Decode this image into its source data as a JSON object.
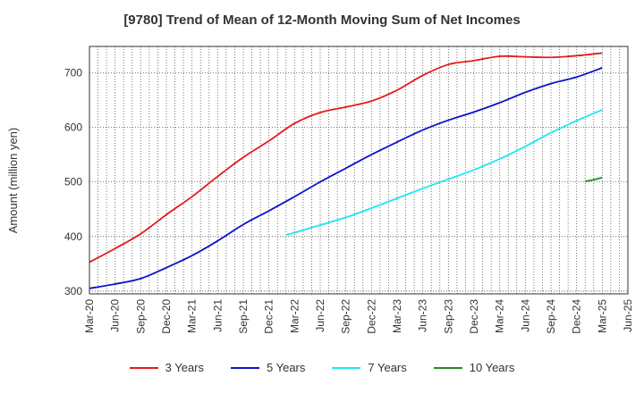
{
  "chart_data": {
    "type": "line",
    "title": "[9780]  Trend of Mean of 12-Month Moving Sum of Net Incomes",
    "ylabel": "Amount (million yen)",
    "xlabel": "",
    "ylim": [
      295,
      748
    ],
    "yticks": [
      300,
      400,
      500,
      600,
      700
    ],
    "xlim": [
      "2020-03",
      "2025-06"
    ],
    "xticks": [
      "Mar-20",
      "Jun-20",
      "Sep-20",
      "Dec-20",
      "Mar-21",
      "Jun-21",
      "Sep-21",
      "Dec-21",
      "Mar-22",
      "Jun-22",
      "Sep-22",
      "Dec-22",
      "Mar-23",
      "Jun-23",
      "Sep-23",
      "Dec-23",
      "Mar-24",
      "Jun-24",
      "Sep-24",
      "Dec-24",
      "Mar-25",
      "Jun-25"
    ],
    "grid": true,
    "legend_position": "bottom",
    "series": [
      {
        "name": "3 Years",
        "color": "#e31a1c",
        "points": [
          [
            "2020-03",
            353
          ],
          [
            "2020-06",
            378
          ],
          [
            "2020-09",
            405
          ],
          [
            "2020-12",
            440
          ],
          [
            "2021-03",
            473
          ],
          [
            "2021-06",
            510
          ],
          [
            "2021-09",
            545
          ],
          [
            "2021-12",
            575
          ],
          [
            "2022-03",
            607
          ],
          [
            "2022-06",
            627
          ],
          [
            "2022-09",
            637
          ],
          [
            "2022-12",
            648
          ],
          [
            "2023-03",
            668
          ],
          [
            "2023-06",
            695
          ],
          [
            "2023-09",
            715
          ],
          [
            "2023-12",
            722
          ],
          [
            "2024-03",
            730
          ],
          [
            "2024-06",
            729
          ],
          [
            "2024-09",
            728
          ],
          [
            "2024-12",
            731
          ],
          [
            "2025-03",
            736
          ]
        ]
      },
      {
        "name": "5 Years",
        "color": "#0a14c8",
        "points": [
          [
            "2020-03",
            305
          ],
          [
            "2020-06",
            313
          ],
          [
            "2020-09",
            323
          ],
          [
            "2020-12",
            343
          ],
          [
            "2021-03",
            365
          ],
          [
            "2021-06",
            392
          ],
          [
            "2021-09",
            422
          ],
          [
            "2021-12",
            447
          ],
          [
            "2022-03",
            473
          ],
          [
            "2022-06",
            500
          ],
          [
            "2022-09",
            525
          ],
          [
            "2022-12",
            550
          ],
          [
            "2023-03",
            573
          ],
          [
            "2023-06",
            595
          ],
          [
            "2023-09",
            613
          ],
          [
            "2023-12",
            628
          ],
          [
            "2024-03",
            645
          ],
          [
            "2024-06",
            664
          ],
          [
            "2024-09",
            680
          ],
          [
            "2024-12",
            692
          ],
          [
            "2025-03",
            709
          ]
        ]
      },
      {
        "name": "7 Years",
        "color": "#1ee8f0",
        "points": [
          [
            "2022-02",
            403
          ],
          [
            "2022-03",
            407
          ],
          [
            "2022-06",
            421
          ],
          [
            "2022-09",
            435
          ],
          [
            "2022-12",
            452
          ],
          [
            "2023-03",
            470
          ],
          [
            "2023-06",
            488
          ],
          [
            "2023-09",
            505
          ],
          [
            "2023-12",
            522
          ],
          [
            "2024-03",
            542
          ],
          [
            "2024-06",
            565
          ],
          [
            "2024-09",
            590
          ],
          [
            "2024-12",
            612
          ],
          [
            "2025-03",
            632
          ]
        ]
      },
      {
        "name": "10 Years",
        "color": "#228b22",
        "points": [
          [
            "2025-01",
            501
          ],
          [
            "2025-02",
            504
          ],
          [
            "2025-03",
            508
          ]
        ]
      }
    ]
  }
}
